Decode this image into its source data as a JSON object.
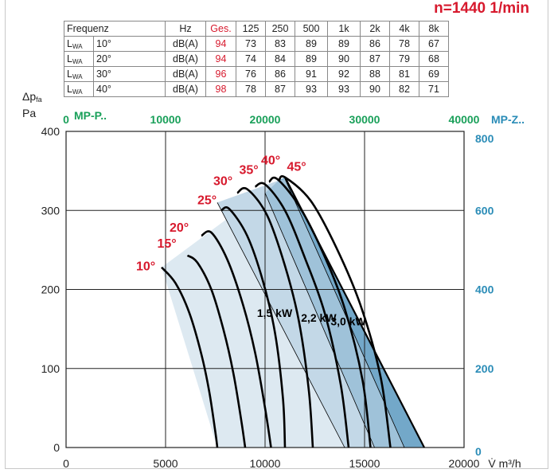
{
  "rpm_label": "n=1440 1/min",
  "sound_table": {
    "header": [
      "Frequenz",
      "Hz",
      "Ges.",
      "125",
      "250",
      "500",
      "1k",
      "2k",
      "4k",
      "8k"
    ],
    "rows": [
      {
        "main": "L",
        "sub": "WA",
        "angle": "10°",
        "unit": "dB(A)",
        "total": "94",
        "bands": [
          "73",
          "83",
          "89",
          "89",
          "86",
          "78",
          "67"
        ]
      },
      {
        "main": "L",
        "sub": "WA",
        "angle": "20°",
        "unit": "dB(A)",
        "total": "94",
        "bands": [
          "74",
          "84",
          "89",
          "90",
          "87",
          "79",
          "68"
        ]
      },
      {
        "main": "L",
        "sub": "WA",
        "angle": "30°",
        "unit": "dB(A)",
        "total": "96",
        "bands": [
          "76",
          "86",
          "91",
          "92",
          "88",
          "81",
          "69"
        ]
      },
      {
        "main": "L",
        "sub": "WA",
        "angle": "40°",
        "unit": "dB(A)",
        "total": "98",
        "bands": [
          "78",
          "87",
          "93",
          "93",
          "90",
          "82",
          "71"
        ]
      }
    ]
  },
  "y_label": {
    "main": "Δp",
    "sub": "fa",
    "unit": "Pa"
  },
  "chart_data": {
    "type": "line",
    "title": "",
    "xlabel": "V̇ m³/h",
    "ylabel": "Δp fa Pa",
    "xlim": [
      0,
      20000
    ],
    "ylim": [
      0,
      400
    ],
    "x_ticks": [
      "0",
      "5000",
      "10000",
      "15000",
      "20000"
    ],
    "y_ticks": [
      "0",
      "100",
      "200",
      "300",
      "400"
    ],
    "top_axis": {
      "label": "MP-P..",
      "ticks": [
        "0",
        "10000",
        "20000",
        "30000",
        "40000"
      ]
    },
    "right_axis": {
      "label": "MP-Z..",
      "ticks": [
        "0",
        "200",
        "400",
        "600",
        "800"
      ]
    },
    "grid": true,
    "series": [
      {
        "name": "10°",
        "x": [
          4800,
          5500,
          6200,
          6800,
          7200,
          7500,
          7600
        ],
        "y": [
          228,
          208,
          170,
          118,
          70,
          20,
          0
        ]
      },
      {
        "name": "15°",
        "x": [
          6100,
          6600,
          7300,
          7900,
          8400,
          8800,
          9000
        ],
        "y": [
          243,
          234,
          200,
          150,
          95,
          35,
          0
        ]
      },
      {
        "name": "20°",
        "x": [
          6800,
          7300,
          8100,
          8900,
          9500,
          10000,
          10300
        ],
        "y": [
          268,
          272,
          238,
          180,
          120,
          50,
          0
        ]
      },
      {
        "name": "25°",
        "x": [
          7800,
          8200,
          9100,
          9900,
          10500,
          10900,
          11000
        ],
        "y": [
          300,
          302,
          268,
          210,
          145,
          62,
          0
        ]
      },
      {
        "name": "30°",
        "x": [
          8600,
          9100,
          10100,
          11000,
          11700,
          12200,
          12400
        ],
        "y": [
          322,
          327,
          294,
          230,
          160,
          72,
          0
        ]
      },
      {
        "name": "35°",
        "x": [
          9500,
          10000,
          11000,
          12000,
          13000,
          13800,
          14200
        ],
        "y": [
          330,
          333,
          300,
          240,
          170,
          80,
          0
        ]
      },
      {
        "name": "40°",
        "x": [
          10200,
          10600,
          11700,
          12900,
          14000,
          14900,
          15300
        ],
        "y": [
          336,
          340,
          306,
          247,
          176,
          85,
          0
        ]
      },
      {
        "name": "45°",
        "x": [
          10700,
          11000,
          12300,
          13600,
          14800,
          15800,
          16300
        ],
        "y": [
          338,
          342,
          312,
          252,
          180,
          90,
          0
        ]
      }
    ],
    "power_lines": [
      {
        "label": "1,5 kW",
        "x": [
          7600,
          14000
        ],
        "y": [
          310,
          0
        ]
      },
      {
        "label": "2,2 kW",
        "x": [
          10000,
          15500
        ],
        "y": [
          322,
          0
        ]
      },
      {
        "label": "3,0 kW",
        "x": [
          11000,
          17000
        ],
        "y": [
          340,
          0
        ]
      }
    ],
    "region_outer": {
      "x": [
        4800,
        10700,
        11000,
        18000,
        7600
      ],
      "y": [
        228,
        338,
        342,
        0,
        0
      ]
    },
    "annotations": [
      "10°",
      "15°",
      "20°",
      "25°",
      "30°",
      "35°",
      "40°",
      "45°",
      "1,5 kW",
      "2,2 kW",
      "3,0 kW"
    ],
    "colors": {
      "light": "#dde9f1",
      "mid": "#c3d8e7",
      "dark": "#9fc2d9",
      "darkest": "#73a8c9",
      "angle": "#d7192d",
      "top_axis": "#1aa05a",
      "right_axis": "#2a8cb7"
    }
  }
}
